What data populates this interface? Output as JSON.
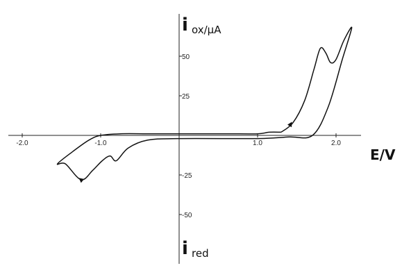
{
  "chart_data": {
    "type": "line",
    "title": "",
    "xlabel": "E/V",
    "ylabel_top": {
      "main": "i",
      "subscript": "ox/µA"
    },
    "ylabel_bottom": {
      "main": "i",
      "subscript": "red"
    },
    "x_ticks": [
      {
        "value": -2.0,
        "label": "-2.0"
      },
      {
        "value": -1.0,
        "label": "-1.0"
      },
      {
        "value": 1.0,
        "label": "1.0"
      },
      {
        "value": 2.0,
        "label": "2.0"
      }
    ],
    "y_ticks": [
      {
        "value": 50,
        "label": "50"
      },
      {
        "value": 25,
        "label": "25"
      },
      {
        "value": -25,
        "label": "-25"
      },
      {
        "value": -50,
        "label": "-50"
      }
    ],
    "xlim": [
      -2.2,
      2.3
    ],
    "ylim": [
      -75,
      75
    ],
    "grid": false,
    "series": [
      {
        "points": [
          [
            1.3,
            2
          ],
          [
            1.45,
            8
          ],
          [
            1.6,
            22
          ],
          [
            1.72,
            42
          ],
          [
            1.8,
            55
          ],
          [
            1.87,
            52
          ],
          [
            1.93,
            46
          ],
          [
            2.0,
            48
          ],
          [
            2.1,
            60
          ],
          [
            2.2,
            68
          ],
          [
            2.08,
            48
          ],
          [
            1.9,
            18
          ],
          [
            1.7,
            0
          ],
          [
            1.4,
            -1
          ],
          [
            1.0,
            -2
          ],
          [
            0.0,
            -2
          ],
          [
            -0.4,
            -3
          ],
          [
            -0.65,
            -8
          ],
          [
            -0.8,
            -16
          ],
          [
            -0.88,
            -13
          ],
          [
            -0.98,
            -16
          ],
          [
            -1.1,
            -22
          ],
          [
            -1.25,
            -28
          ],
          [
            -1.45,
            -18
          ],
          [
            -1.55,
            -18
          ],
          [
            -1.35,
            -10
          ],
          [
            -1.15,
            -3
          ],
          [
            -1.0,
            0
          ],
          [
            -0.75,
            1
          ],
          [
            -0.4,
            1
          ],
          [
            0.0,
            1
          ],
          [
            0.6,
            1
          ],
          [
            1.0,
            1
          ],
          [
            1.15,
            2
          ],
          [
            1.3,
            2
          ]
        ],
        "arrows": [
          {
            "at": [
              1.42,
              7
            ],
            "toward": [
              1.6,
              22
            ]
          },
          {
            "at": [
              -1.25,
              -28
            ],
            "toward": [
              -1.45,
              -20
            ]
          }
        ]
      }
    ]
  }
}
